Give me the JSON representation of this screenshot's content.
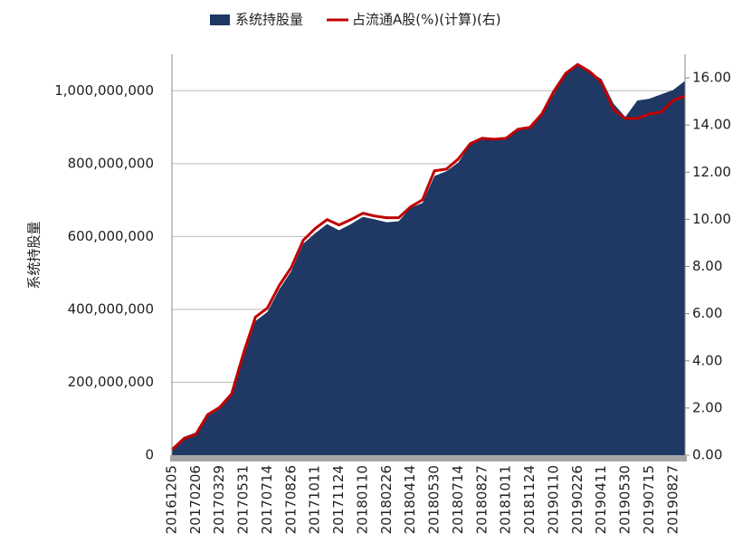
{
  "chart_data": {
    "type": "area",
    "categories": [
      "20161205",
      null,
      "20170206",
      null,
      "20170329",
      null,
      "20170531",
      null,
      "20170714",
      null,
      "20170826",
      null,
      "20171011",
      null,
      "20171124",
      null,
      "20180110",
      null,
      "20180226",
      null,
      "20180414",
      null,
      "20180530",
      null,
      "20180714",
      null,
      "20180827",
      null,
      "20181011",
      null,
      "20181124",
      null,
      "20190110",
      null,
      "20190226",
      null,
      "20190411",
      null,
      "20190530",
      null,
      "20190715",
      null,
      "20190827",
      null
    ],
    "series": [
      {
        "name": "系统持股量",
        "type": "area",
        "color": "#1f3864",
        "values": [
          20000000,
          50000000,
          62000000,
          107000000,
          127000000,
          164000000,
          269000000,
          368000000,
          393000000,
          455000000,
          505000000,
          580000000,
          609000000,
          634000000,
          617000000,
          634000000,
          654000000,
          647000000,
          639000000,
          642000000,
          679000000,
          692000000,
          766000000,
          779000000,
          803000000,
          853000000,
          866000000,
          866000000,
          866000000,
          898000000,
          903000000,
          940000000,
          990000000,
          1052000000,
          1072000000,
          1052000000,
          1032000000,
          965000000,
          928000000,
          973000000,
          978000000,
          990000000,
          1002000000,
          1027000000
        ]
      },
      {
        "name": "占流通A股(%)(计算)(右)",
        "type": "line",
        "axis": "y2",
        "color": "#c00000",
        "values": [
          0.23,
          0.7,
          0.88,
          1.72,
          2.03,
          2.6,
          4.33,
          5.86,
          6.24,
          7.2,
          7.96,
          9.11,
          9.61,
          9.99,
          9.76,
          9.99,
          10.26,
          10.14,
          10.07,
          10.07,
          10.53,
          10.83,
          12.06,
          12.13,
          12.56,
          13.21,
          13.44,
          13.4,
          13.44,
          13.82,
          13.9,
          14.47,
          15.43,
          16.19,
          16.57,
          16.27,
          15.81,
          14.66,
          14.28,
          14.28,
          14.47,
          14.55,
          15.04,
          15.23
        ]
      }
    ],
    "y_label": "系统持股量",
    "ylim": [
      0,
      1100000000
    ],
    "yticks": [
      {
        "value": 0,
        "label": "0"
      },
      {
        "value": 200000000,
        "label": "200,000,000"
      },
      {
        "value": 400000000,
        "label": "400,000,000"
      },
      {
        "value": 600000000,
        "label": "600,000,000"
      },
      {
        "value": 800000000,
        "label": "800,000,000"
      },
      {
        "value": 1000000000,
        "label": "1,000,000,000"
      }
    ],
    "y2lim": [
      0,
      17
    ],
    "y2ticks": [
      {
        "value": 0,
        "label": "0.00"
      },
      {
        "value": 2,
        "label": "2.00"
      },
      {
        "value": 4,
        "label": "4.00"
      },
      {
        "value": 6,
        "label": "6.00"
      },
      {
        "value": 8,
        "label": "8.00"
      },
      {
        "value": 10,
        "label": "10.00"
      },
      {
        "value": 12,
        "label": "12.00"
      },
      {
        "value": 14,
        "label": "14.00"
      },
      {
        "value": 16,
        "label": "16.00"
      }
    ],
    "grid": true
  }
}
